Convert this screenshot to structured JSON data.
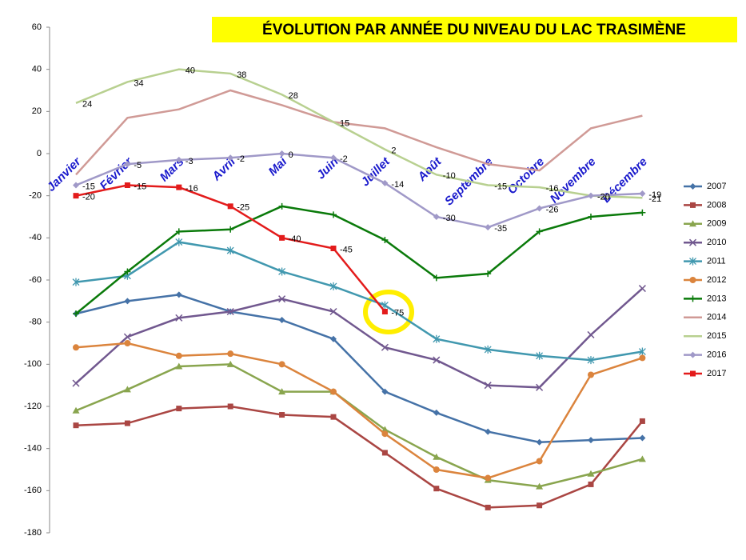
{
  "chart_data": {
    "type": "line",
    "title": "ÉVOLUTION PAR ANNÉE DU NIVEAU DU LAC TRASIMÈNE",
    "categories": [
      "Janvier",
      "Février",
      "Mars",
      "Avril",
      "Mai",
      "Juin",
      "Juillet",
      "Août",
      "Septembre",
      "Octobre",
      "Novembre",
      "Décembre"
    ],
    "ylim": [
      -180,
      60
    ],
    "yticks": [
      60,
      40,
      20,
      0,
      -20,
      -40,
      -60,
      -80,
      -100,
      -120,
      -140,
      -160,
      -180
    ],
    "grid": false,
    "legend": "right",
    "series": [
      {
        "name": "2007",
        "color": "#4572a7",
        "marker": "diamond",
        "values": [
          -76,
          -70,
          -67,
          -75,
          -79,
          -88,
          -113,
          -123,
          -132,
          -137,
          -136,
          -135
        ]
      },
      {
        "name": "2008",
        "color": "#aa4643",
        "marker": "square",
        "values": [
          -129,
          -128,
          -121,
          -120,
          -124,
          -125,
          -142,
          -159,
          -168,
          -167,
          -157,
          -127
        ]
      },
      {
        "name": "2009",
        "color": "#89a54e",
        "marker": "triangle",
        "values": [
          -122,
          -112,
          -101,
          -100,
          -113,
          -113,
          -131,
          -144,
          -155,
          -158,
          -152,
          -145
        ]
      },
      {
        "name": "2010",
        "color": "#71588f",
        "marker": "x",
        "values": [
          -109,
          -87,
          -78,
          -75,
          -69,
          -75,
          -92,
          -98,
          -110,
          -111,
          -86,
          -64
        ]
      },
      {
        "name": "2011",
        "color": "#4198af",
        "marker": "star",
        "values": [
          -61,
          -58,
          -42,
          -46,
          -56,
          -63,
          -72,
          -88,
          -93,
          -96,
          -98,
          -94
        ]
      },
      {
        "name": "2012",
        "color": "#db843d",
        "marker": "circle",
        "values": [
          -92,
          -90,
          -96,
          -95,
          -100,
          -113,
          -133,
          -150,
          -154,
          -146,
          -105,
          -97
        ]
      },
      {
        "name": "2013",
        "color": "#0a7a0a",
        "marker": "plus",
        "values": [
          -76,
          -56,
          -37,
          -36,
          -25,
          -29,
          -41,
          -59,
          -57,
          -37,
          -30,
          -28
        ]
      },
      {
        "name": "2014",
        "color": "#d09a96",
        "marker": "none",
        "values": [
          -10,
          17,
          21,
          30,
          23,
          15,
          12,
          3,
          -5,
          -8,
          12,
          18
        ]
      },
      {
        "name": "2015",
        "color": "#b8d090",
        "marker": "none",
        "data_labels": true,
        "values": [
          24,
          34,
          40,
          38,
          28,
          15,
          2,
          -10,
          -15,
          -16,
          -20,
          -21
        ]
      },
      {
        "name": "2016",
        "color": "#a099c8",
        "marker": "diamond",
        "data_labels": true,
        "values": [
          -15,
          -5,
          -3,
          -2,
          0,
          -2,
          -14,
          -30,
          -35,
          -26,
          -20,
          -19
        ]
      },
      {
        "name": "2017",
        "color": "#e31b1b",
        "marker": "square",
        "data_labels": true,
        "values": [
          -20,
          -15,
          -16,
          -25,
          -40,
          -45,
          -75,
          null,
          null,
          null,
          null,
          null
        ]
      }
    ]
  }
}
